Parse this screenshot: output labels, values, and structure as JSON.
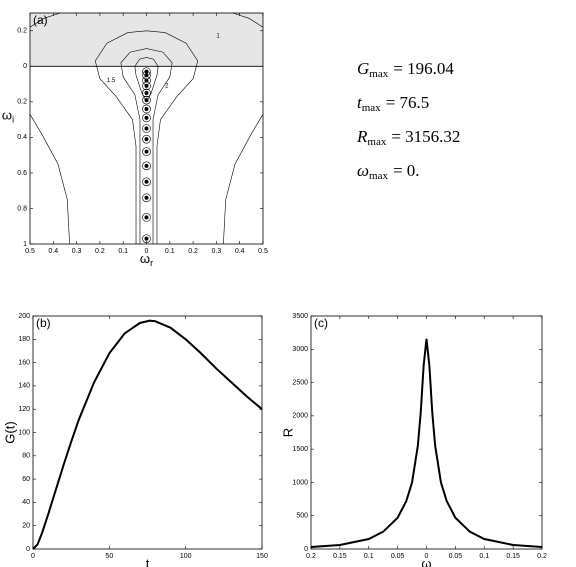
{
  "chart_data": [
    {
      "type": "contour",
      "label": "(a)",
      "xlabel": "ω",
      "xlabel_subscript": "r",
      "ylabel": "ω",
      "ylabel_subscript": "i",
      "xlim": [
        -0.5,
        0.5
      ],
      "xticks": [
        {
          "value": -0.5,
          "label": "0.5"
        },
        {
          "value": -0.4,
          "label": "0.4"
        },
        {
          "value": -0.3,
          "label": "0.3"
        },
        {
          "value": -0.2,
          "label": "0.2"
        },
        {
          "value": -0.1,
          "label": "0.1"
        },
        0,
        0.1,
        0.2,
        0.3,
        0.4,
        0.5
      ],
      "ylim": [
        -1,
        0.3
      ],
      "yticks": [
        0.2,
        0,
        {
          "value": -0.2,
          "label": "0.2"
        },
        {
          "value": -0.4,
          "label": "0.4"
        },
        {
          "value": -0.6,
          "label": "0.6"
        },
        {
          "value": -0.8,
          "label": "0.8"
        },
        {
          "value": -1,
          "label": "1"
        }
      ],
      "contour_levels": [
        1,
        1.5,
        2
      ],
      "annotations": [
        {
          "symbol": "G",
          "subscript": "max",
          "text": "= 196.04"
        },
        {
          "symbol": "t",
          "subscript": "max",
          "text": "= 76.5"
        },
        {
          "symbol": "R",
          "subscript": "max",
          "text": "= 3156.32"
        },
        {
          "symbol": "ω",
          "subscript": "max",
          "text": "= 0."
        }
      ]
    },
    {
      "type": "line",
      "label": "(b)",
      "xlabel": "t",
      "ylabel": "G(t)",
      "xlim": [
        0,
        150
      ],
      "xticks": [
        0,
        50,
        100,
        150
      ],
      "ylim": [
        0,
        200
      ],
      "yticks": [
        0,
        20,
        40,
        60,
        80,
        100,
        120,
        140,
        160,
        180,
        200
      ],
      "x": [
        0,
        3,
        6,
        10,
        15,
        20,
        25,
        30,
        40,
        50,
        60,
        70,
        76.5,
        80,
        90,
        100,
        110,
        120,
        130,
        140,
        150
      ],
      "series": [
        {
          "color": "#000000",
          "values": [
            0,
            4,
            14,
            30,
            51,
            72,
            92,
            111,
            143,
            168,
            185,
            194,
            196.04,
            195.5,
            190,
            180,
            168,
            155,
            143,
            131,
            120
          ]
        }
      ]
    },
    {
      "type": "line",
      "label": "(c)",
      "xlabel": "ω",
      "ylabel": "R",
      "xlim": [
        -0.2,
        0.2
      ],
      "xticks": [
        {
          "value": -0.2,
          "label": "0.2"
        },
        {
          "value": -0.15,
          "label": "0.15"
        },
        {
          "value": -0.1,
          "label": "0.1"
        },
        {
          "value": -0.05,
          "label": "0.05"
        },
        0,
        0.05,
        0.1,
        0.15,
        0.2
      ],
      "ylim": [
        0,
        3500
      ],
      "yticks": [
        0,
        500,
        1000,
        1500,
        2000,
        2500,
        3000,
        3500
      ],
      "x": [
        -0.2,
        -0.15,
        -0.1,
        -0.075,
        -0.05,
        -0.035,
        -0.025,
        -0.015,
        -0.01,
        -0.005,
        0,
        0.005,
        0.01,
        0.015,
        0.025,
        0.035,
        0.05,
        0.075,
        0.1,
        0.15,
        0.2
      ],
      "series": [
        {
          "color": "#000000",
          "values": [
            30,
            60,
            150,
            260,
            470,
            720,
            1000,
            1550,
            2050,
            2750,
            3156.32,
            2750,
            2050,
            1550,
            1000,
            720,
            470,
            260,
            150,
            60,
            30
          ]
        }
      ]
    }
  ]
}
